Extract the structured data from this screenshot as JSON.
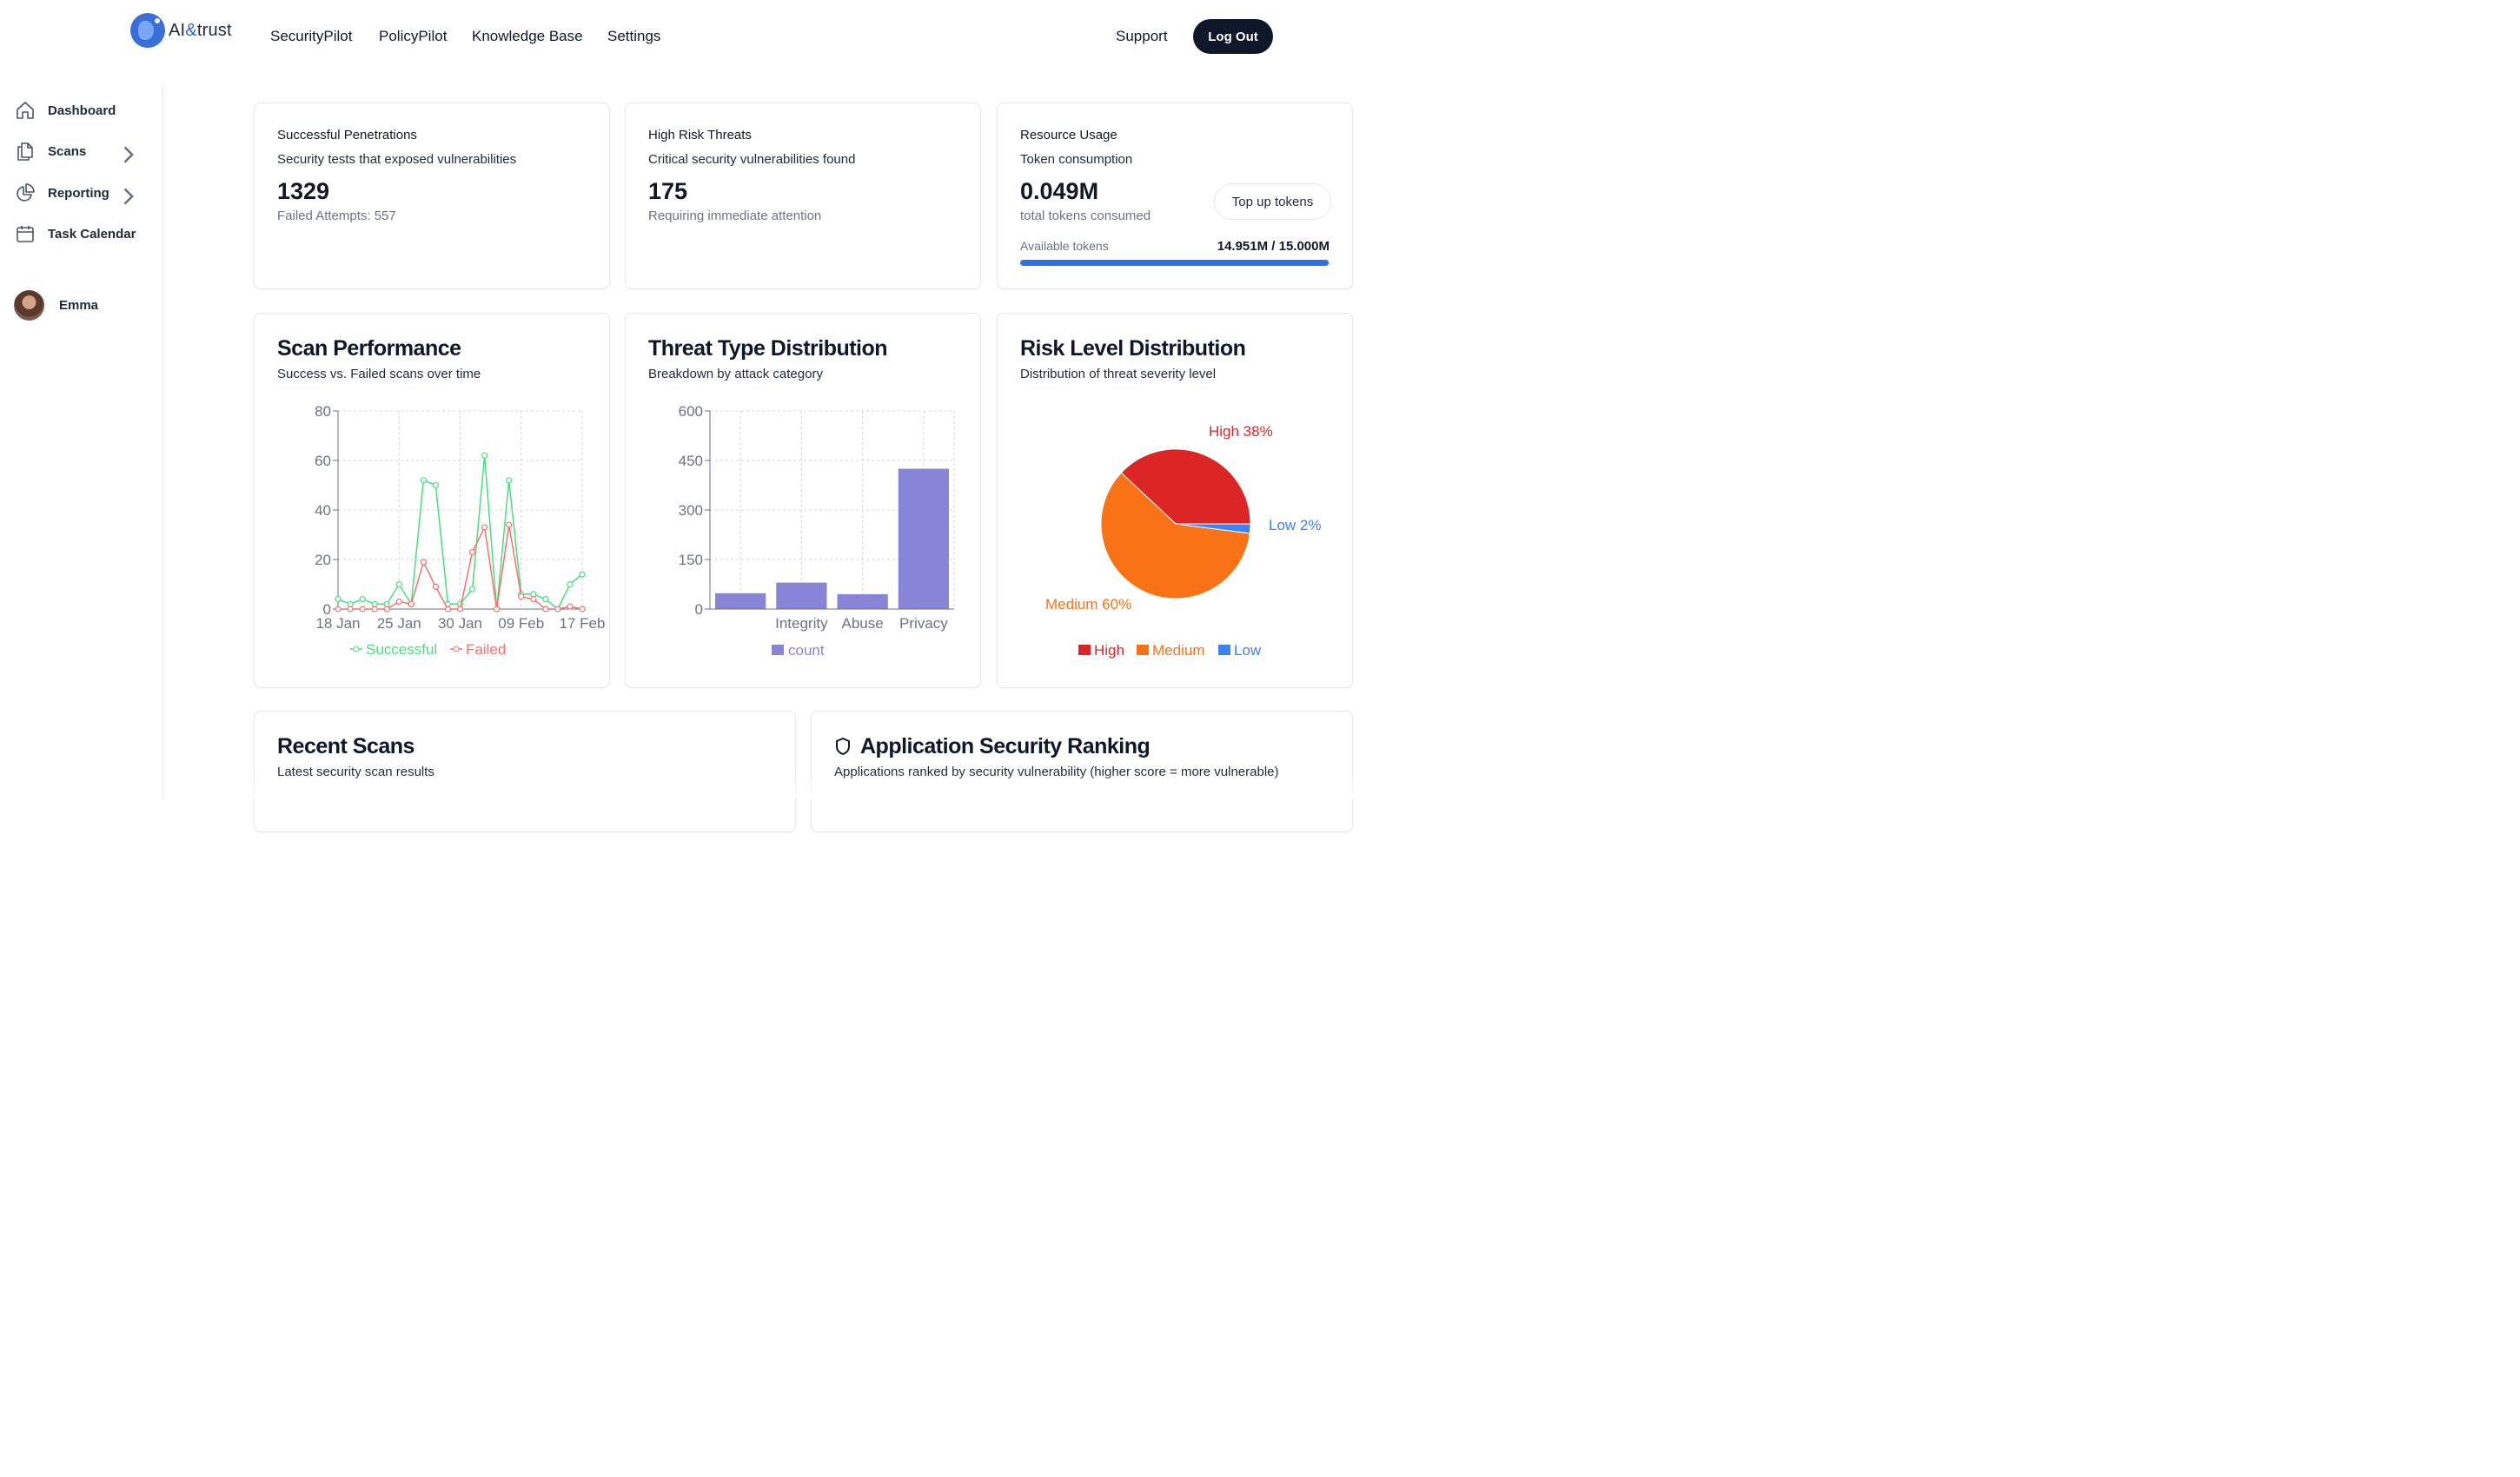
{
  "brand": {
    "name_prefix": "AI",
    "name_amp": "&",
    "name_suffix": "trust"
  },
  "nav": {
    "links": [
      "SecurityPilot",
      "PolicyPilot",
      "Knowledge Base",
      "Settings"
    ],
    "support": "Support",
    "logout": "Log Out"
  },
  "sidebar": {
    "items": [
      {
        "label": "Dashboard",
        "icon": "home-icon"
      },
      {
        "label": "Scans",
        "icon": "document-icon"
      },
      {
        "label": "Reporting",
        "icon": "pie-chart-icon"
      },
      {
        "label": "Task Calendar",
        "icon": "calendar-icon"
      }
    ],
    "user": "Emma"
  },
  "kpis": {
    "penetrations": {
      "title": "Successful Penetrations",
      "subtitle": "Security tests that exposed vulnerabilities",
      "value": "1329",
      "note": "Failed Attempts: 557"
    },
    "threats": {
      "title": "High Risk Threats",
      "subtitle": "Critical security vulnerabilities found",
      "value": "175",
      "note": "Requiring immediate attention"
    },
    "resources": {
      "title": "Resource Usage",
      "subtitle": "Token consumption",
      "value": "0.049M",
      "note": "total tokens consumed",
      "topup": "Top up tokens",
      "available_label": "Available tokens",
      "available_value": "14.951M / 15.000M",
      "available_fraction": 0.9967
    }
  },
  "scan_card": {
    "title": "Scan Performance",
    "subtitle": "Success vs. Failed scans over time"
  },
  "threat_card": {
    "title": "Threat Type Distribution",
    "subtitle": "Breakdown by attack category"
  },
  "risk_card": {
    "title": "Risk Level Distribution",
    "subtitle": "Distribution of threat severity level"
  },
  "recent_card": {
    "title": "Recent Scans",
    "subtitle": "Latest security scan results"
  },
  "ranking_card": {
    "title": "Application Security Ranking",
    "subtitle": "Applications ranked by security vulnerability (higher score = more vulnerable)"
  },
  "colors": {
    "success": "#4ade80",
    "failed": "#f87171",
    "bar": "#8884d8",
    "high": "#dc2626",
    "medium": "#f97316",
    "low": "#3b82f6"
  },
  "chart_data": [
    {
      "type": "line",
      "x_ticks": [
        "18 Jan",
        "25 Jan",
        "30 Jan",
        "09 Feb",
        "17 Feb"
      ],
      "x_tick_index": [
        0,
        5,
        10,
        15,
        20
      ],
      "y_ticks": [
        0,
        20,
        40,
        60,
        80
      ],
      "ylim": [
        0,
        80
      ],
      "grid": true,
      "legend": "bottom",
      "series": [
        {
          "name": "Successful",
          "values": [
            4,
            2,
            4,
            2,
            2,
            10,
            2,
            52,
            50,
            2,
            2,
            8,
            62,
            0,
            52,
            6,
            6,
            4,
            0,
            10,
            14
          ]
        },
        {
          "name": "Failed",
          "values": [
            0,
            0,
            0,
            0,
            0,
            3,
            2,
            19,
            9,
            0,
            0,
            23,
            33,
            0,
            34,
            5,
            4,
            0,
            0,
            1,
            0
          ]
        }
      ]
    },
    {
      "type": "bar",
      "categories": [
        "",
        "Integrity",
        "Abuse",
        "Privacy"
      ],
      "values": [
        48,
        80,
        45,
        425
      ],
      "y_ticks": [
        0,
        150,
        300,
        450,
        600
      ],
      "ylim": [
        0,
        600
      ],
      "grid": true,
      "legend": "bottom",
      "series_name": "count"
    },
    {
      "type": "pie",
      "slices": [
        {
          "label": "High",
          "value": 38
        },
        {
          "label": "Medium",
          "value": 60
        },
        {
          "label": "Low",
          "value": 2
        }
      ],
      "legend": "bottom"
    }
  ]
}
